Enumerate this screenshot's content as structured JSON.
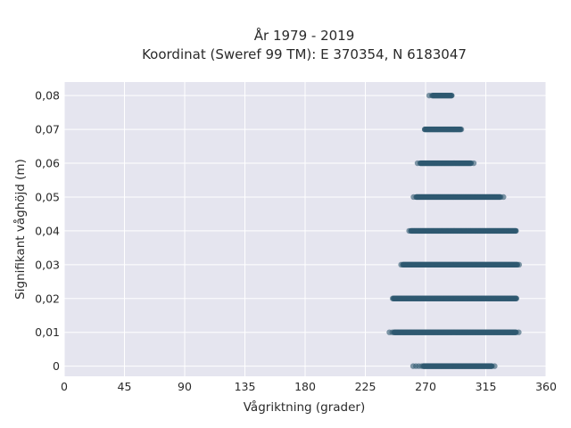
{
  "chart_data": {
    "type": "scatter",
    "title": [
      "År 1979 - 2019",
      "Koordinat (Sweref 99 TM): E 370354, N 6183047"
    ],
    "xlabel": "Vågriktning (grader)",
    "ylabel": "Signifikant våghöjd (m)",
    "xlim": [
      0,
      360
    ],
    "ylim": [
      -0.003,
      0.084
    ],
    "x_ticks": [
      0,
      45,
      90,
      135,
      180,
      225,
      270,
      315,
      360
    ],
    "y_ticks": [
      0,
      0.01,
      0.02,
      0.03,
      0.04,
      0.05,
      0.06,
      0.07,
      0.08
    ],
    "y_tick_labels": [
      "0",
      "0,01",
      "0,02",
      "0,03",
      "0,04",
      "0,05",
      "0,06",
      "0,07",
      "0,08"
    ],
    "grid": true,
    "legend": "none",
    "background": "#e5e5ef",
    "marker_color": "#2e5870",
    "bands": [
      {
        "y": 0.0,
        "x_min": 260,
        "x_max": 323,
        "dense_from": 268,
        "dense_to": 320
      },
      {
        "y": 0.01,
        "x_min": 243,
        "x_max": 340,
        "dense_from": 246,
        "dense_to": 338
      },
      {
        "y": 0.02,
        "x_min": 244,
        "x_max": 339,
        "dense_from": 246,
        "dense_to": 338
      },
      {
        "y": 0.03,
        "x_min": 251,
        "x_max": 340,
        "dense_from": 253,
        "dense_to": 339
      },
      {
        "y": 0.04,
        "x_min": 257,
        "x_max": 339,
        "dense_from": 259,
        "dense_to": 338
      },
      {
        "y": 0.05,
        "x_min": 261,
        "x_max": 330,
        "dense_from": 263,
        "dense_to": 326
      },
      {
        "y": 0.06,
        "x_min": 264,
        "x_max": 308,
        "dense_from": 266,
        "dense_to": 304
      },
      {
        "y": 0.07,
        "x_min": 268,
        "x_max": 298,
        "dense_from": 269,
        "dense_to": 296
      },
      {
        "y": 0.08,
        "x_min": 272,
        "x_max": 290,
        "dense_from": 275,
        "dense_to": 290
      }
    ]
  }
}
